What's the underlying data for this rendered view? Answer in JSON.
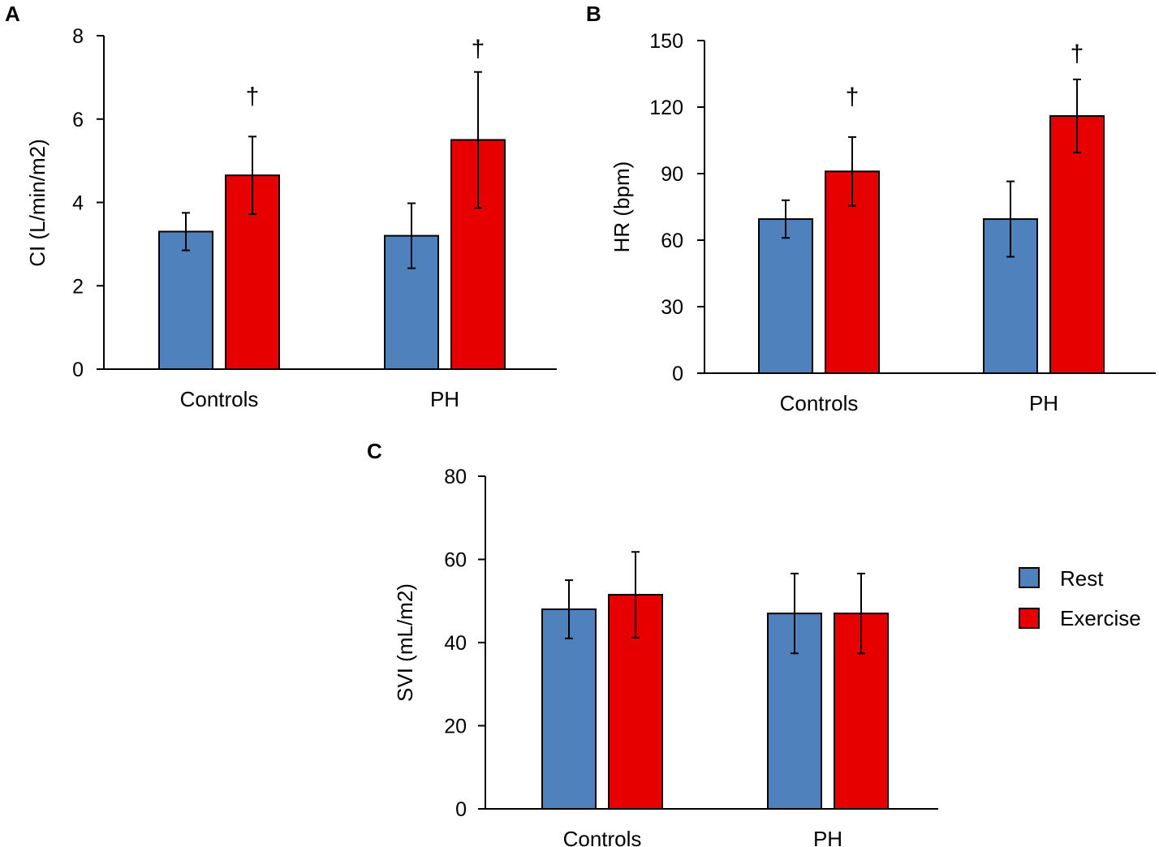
{
  "chart_data": [
    {
      "panel": "A",
      "type": "bar",
      "categories": [
        "Controls",
        "PH"
      ],
      "ylabel": "CI (L/min/m2)",
      "xlabel": "",
      "ylim": [
        0,
        8
      ],
      "yticks": [
        0,
        2,
        4,
        6,
        8
      ],
      "series": [
        {
          "name": "Rest",
          "color": "#4F81BD",
          "values": [
            3.3,
            3.2
          ],
          "errors": [
            0.45,
            0.78
          ]
        },
        {
          "name": "Exercise",
          "color": "#E60000",
          "values": [
            4.65,
            5.5
          ],
          "errors": [
            0.93,
            1.63
          ]
        }
      ],
      "annotations": [
        {
          "category": "Controls",
          "series": "Exercise",
          "text": "†"
        },
        {
          "category": "PH",
          "series": "Exercise",
          "text": "†"
        }
      ]
    },
    {
      "panel": "B",
      "type": "bar",
      "categories": [
        "Controls",
        "PH"
      ],
      "ylabel": "HR (bpm)",
      "xlabel": "",
      "ylim": [
        0,
        150
      ],
      "yticks": [
        0,
        30,
        60,
        90,
        120,
        150
      ],
      "series": [
        {
          "name": "Rest",
          "color": "#4F81BD",
          "values": [
            69.5,
            69.5
          ],
          "errors": [
            8.5,
            17
          ]
        },
        {
          "name": "Exercise",
          "color": "#E60000",
          "values": [
            91,
            116
          ],
          "errors": [
            15.5,
            16.5
          ]
        }
      ],
      "annotations": [
        {
          "category": "Controls",
          "series": "Exercise",
          "text": "†"
        },
        {
          "category": "PH",
          "series": "Exercise",
          "text": "†"
        }
      ]
    },
    {
      "panel": "C",
      "type": "bar",
      "categories": [
        "Controls",
        "PH"
      ],
      "ylabel": "SVI (mL/m2)",
      "xlabel": "",
      "ylim": [
        0,
        80
      ],
      "yticks": [
        0,
        20,
        40,
        60,
        80
      ],
      "series": [
        {
          "name": "Rest",
          "color": "#4F81BD",
          "values": [
            48,
            47
          ],
          "errors": [
            7,
            9.6
          ]
        },
        {
          "name": "Exercise",
          "color": "#E60000",
          "values": [
            51.5,
            47
          ],
          "errors": [
            10.3,
            9.6
          ]
        }
      ],
      "annotations": []
    }
  ],
  "legend": {
    "position": "right",
    "items": [
      {
        "label": "Rest",
        "color": "#4F81BD"
      },
      {
        "label": "Exercise",
        "color": "#E60000"
      }
    ]
  }
}
